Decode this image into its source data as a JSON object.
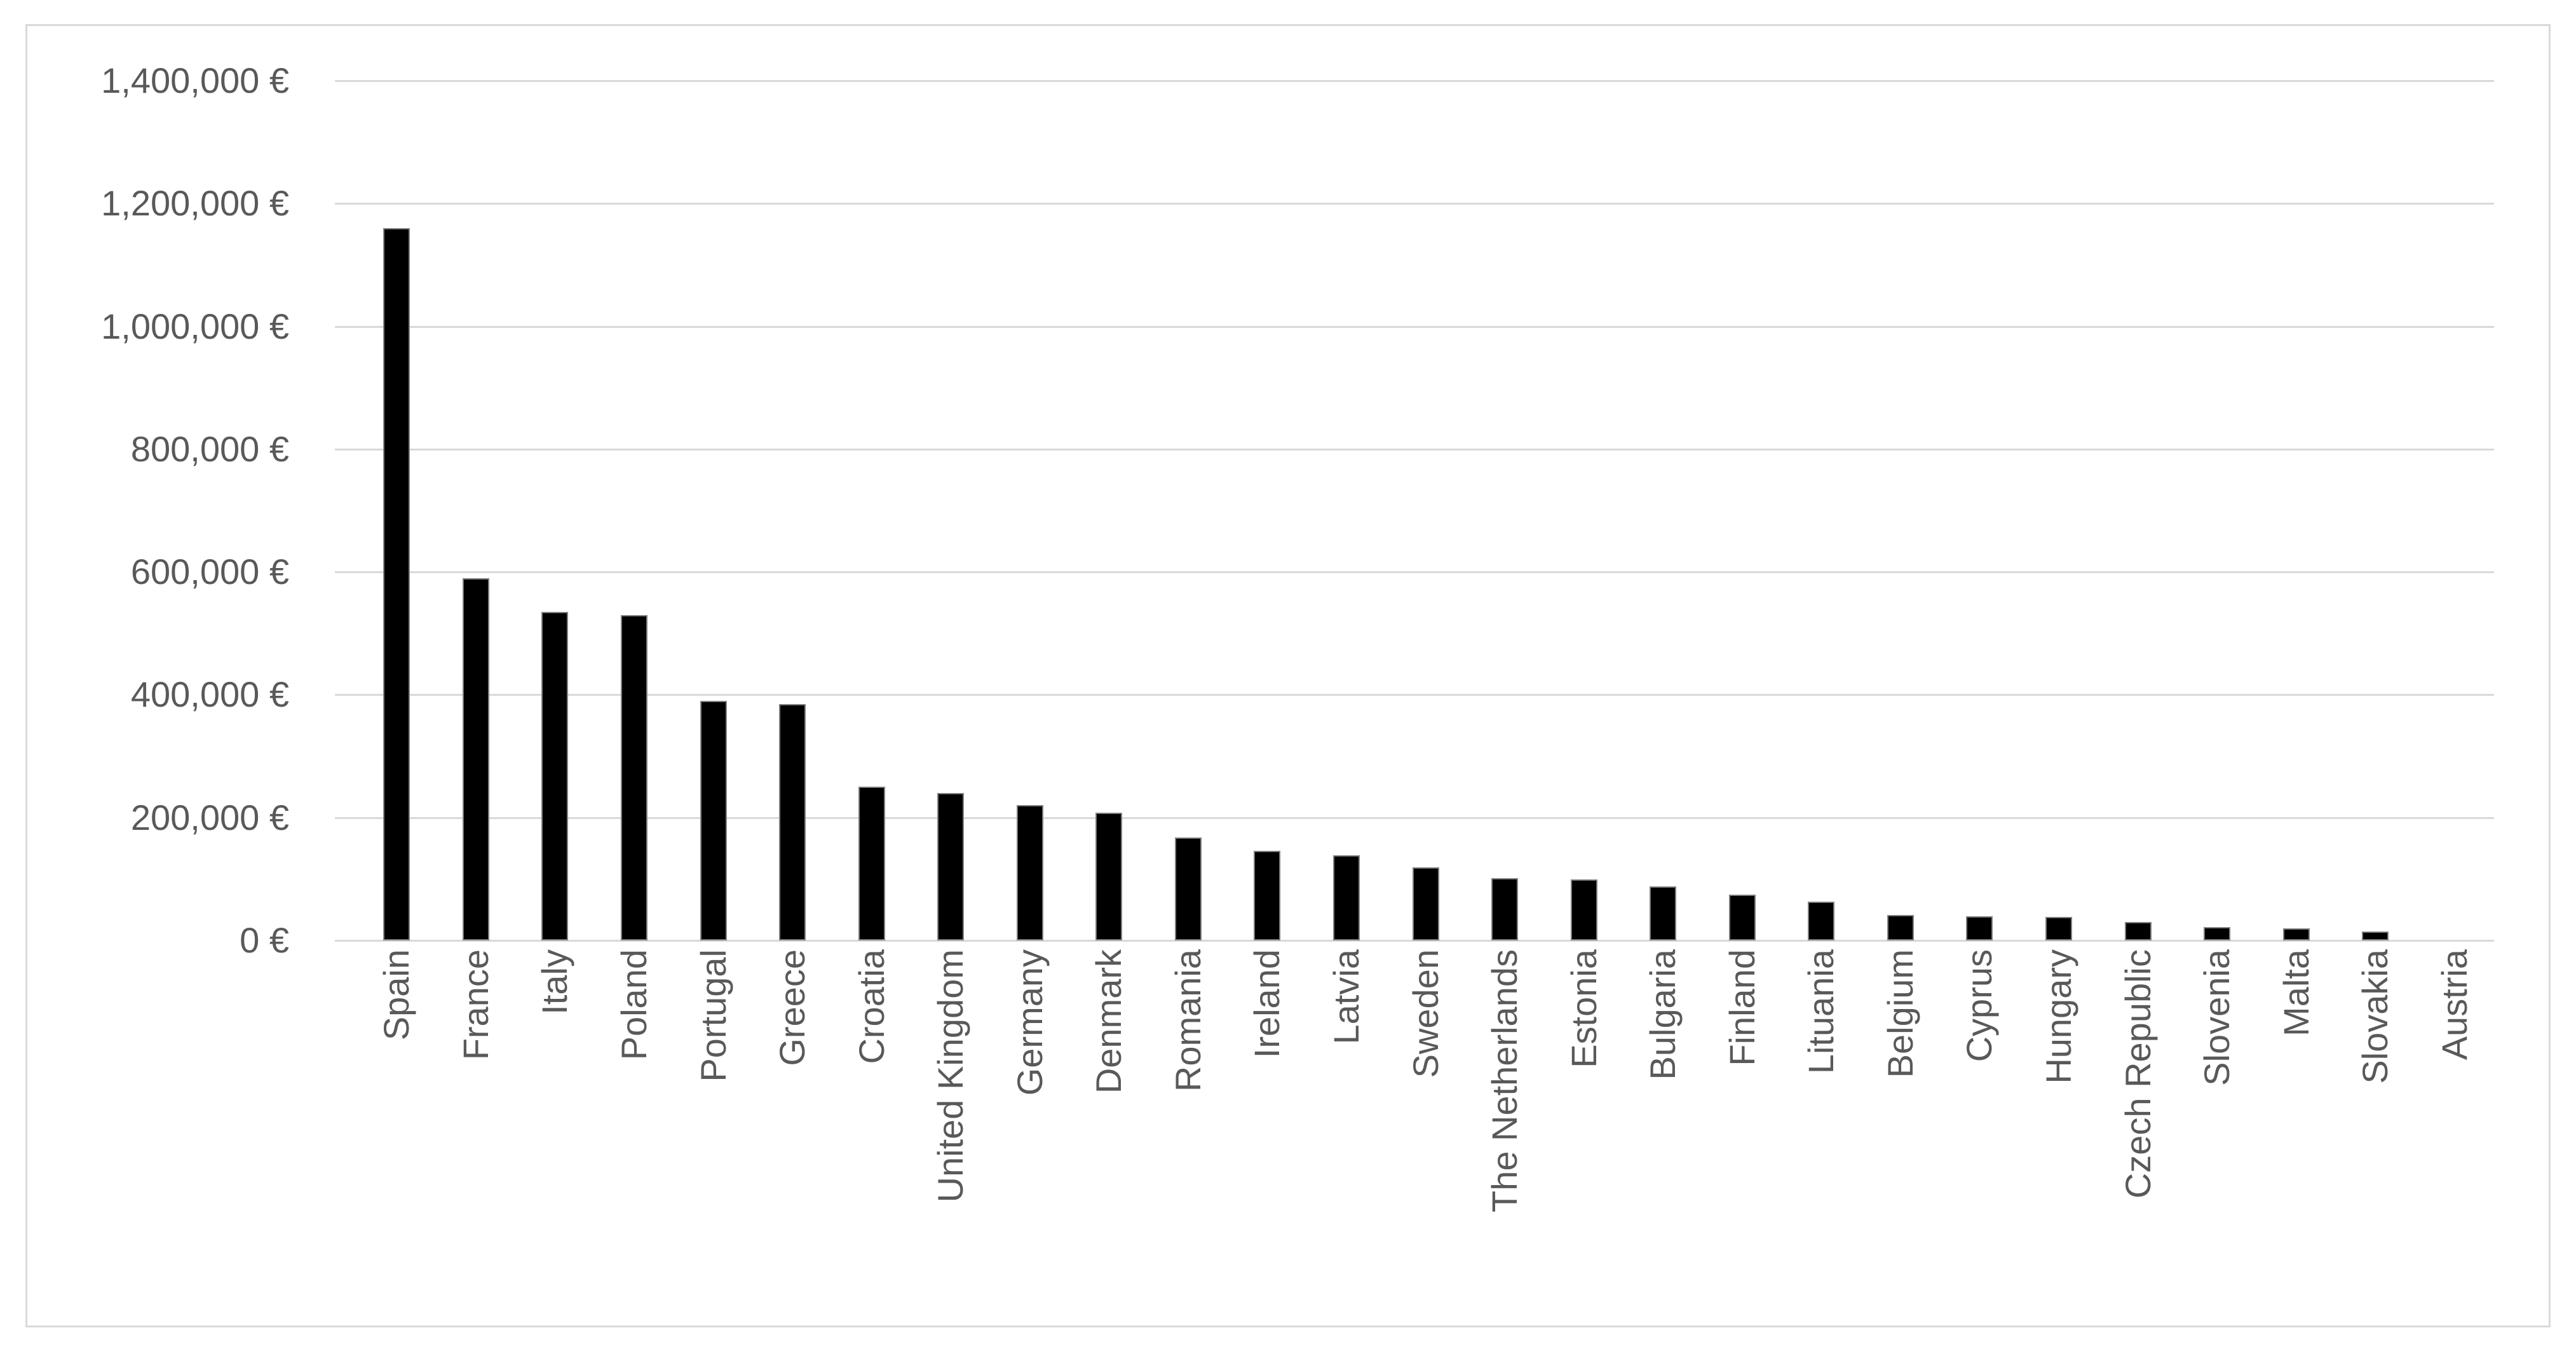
{
  "chart": {
    "background_color": "#FFFFFF",
    "frame_border_color": "#D9D9D9",
    "gridline_color": "#D9D9D9",
    "tick_color": "#D9D9D9",
    "bar_fill_color": "#000000",
    "bar_edge_color": "#7F7F7F",
    "axis_label_color": "#595959"
  },
  "chart_data": {
    "type": "bar",
    "title": "",
    "xlabel": "",
    "ylabel": "",
    "series_name": "",
    "legend": "none",
    "grid": "horizontal",
    "x_label_rotation": -90,
    "ylim": [
      0,
      1400000
    ],
    "ytick_step": 200000,
    "ytick_labels": [
      "0 €",
      "200,000 €",
      "400,000 €",
      "600,000 €",
      "800,000 €",
      "1,000,000 €",
      "1,200,000 €",
      "1,400,000 €"
    ],
    "categories": [
      "Spain",
      "France",
      "Italy",
      "Poland",
      "Portugal",
      "Greece",
      "Croatia",
      "United Kingdom",
      "Germany",
      "Denmark",
      "Romania",
      "Ireland",
      "Latvia",
      "Sweden",
      "The Netherlands",
      "Estonia",
      "Bulgaria",
      "Finland",
      "Lituania",
      "Belgium",
      "Cyprus",
      "Hungary",
      "Czech Republic",
      "Slovenia",
      "Malta",
      "Slovakia",
      "Austria"
    ],
    "values": [
      1160000,
      590000,
      535000,
      530000,
      390000,
      385000,
      250000,
      240000,
      220000,
      208000,
      168000,
      146000,
      139000,
      119000,
      101000,
      99000,
      88000,
      75000,
      63000,
      41000,
      39000,
      38000,
      30000,
      22000,
      20000,
      14000,
      0
    ]
  }
}
